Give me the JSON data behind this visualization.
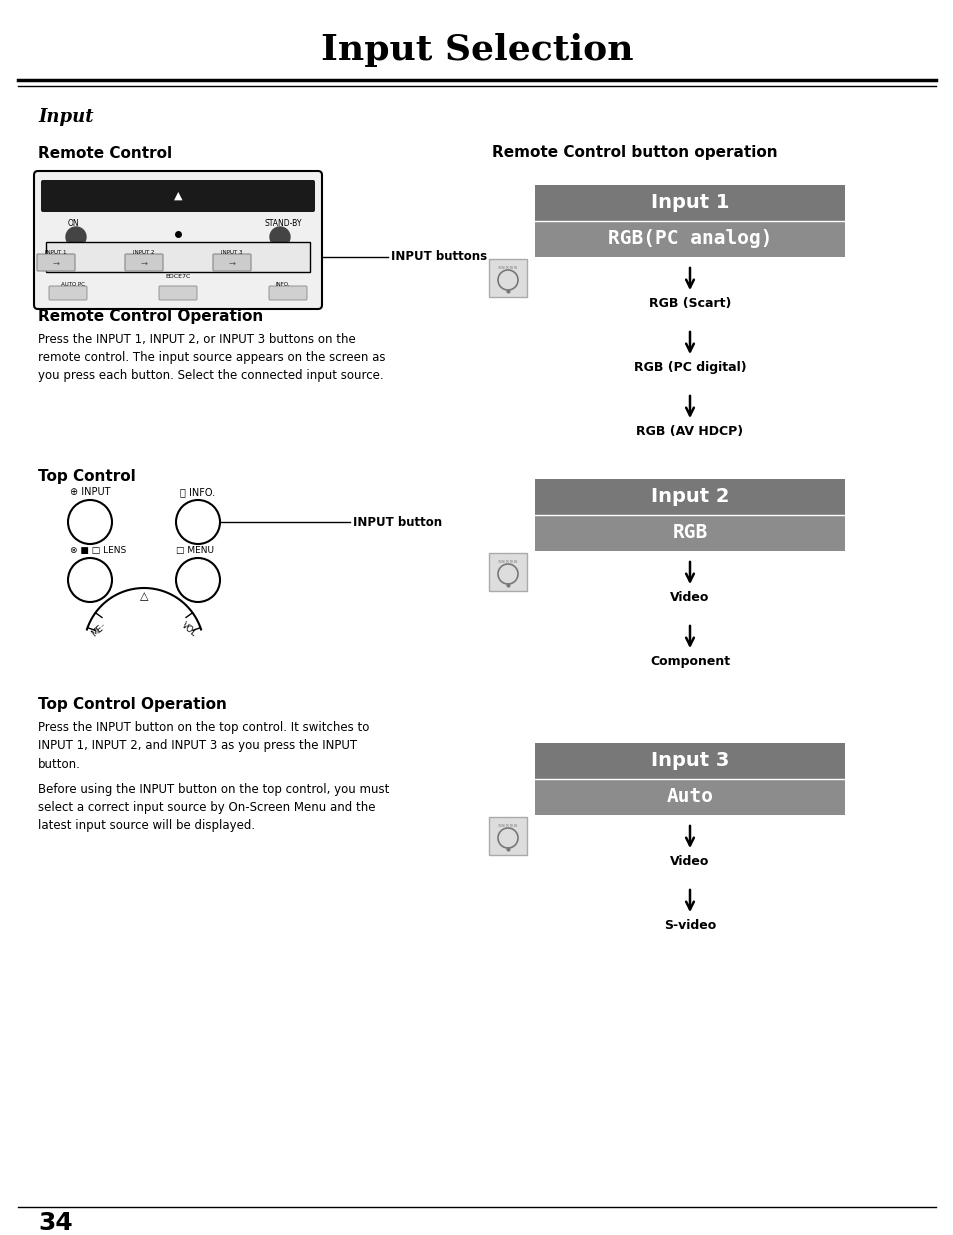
{
  "title": "Input Selection",
  "page_number": "34",
  "bg_color": "#ffffff",
  "title_color": "#000000",
  "section_title": "Input",
  "remote_control_label": "Remote Control",
  "remote_op_label": "Remote Control Operation",
  "remote_op_text": "Press the INPUT 1, INPUT 2, or INPUT 3 buttons on the\nremote control. The input source appears on the screen as\nyou press each button. Select the connected input source.",
  "top_control_label": "Top Control",
  "top_control_op_label": "Top Control Operation",
  "top_control_op_text1": "Press the INPUT button on the top control. It switches to\nINPUT 1, INPUT 2, and INPUT 3 as you press the INPUT\nbutton.",
  "top_control_op_text2": "Before using the INPUT button on the top control, you must\nselect a correct input source by On-Screen Menu and the\nlatest input source will be displayed.",
  "rc_button_op_label": "Remote Control button operation",
  "input_groups": [
    {
      "header": "Input 1",
      "subheader": "RGB(PC analog)",
      "items": [
        "RGB (Scart)",
        "RGB (PC digital)",
        "RGB (AV HDCP)"
      ]
    },
    {
      "header": "Input 2",
      "subheader": "RGB",
      "items": [
        "Video",
        "Component"
      ]
    },
    {
      "header": "Input 3",
      "subheader": "Auto",
      "items": [
        "Video",
        "S-video"
      ]
    }
  ],
  "input_buttons_label": "INPUT buttons",
  "input_button_label": "INPUT button",
  "header_color": "#787878",
  "subheader_color": "#8c8c8c"
}
